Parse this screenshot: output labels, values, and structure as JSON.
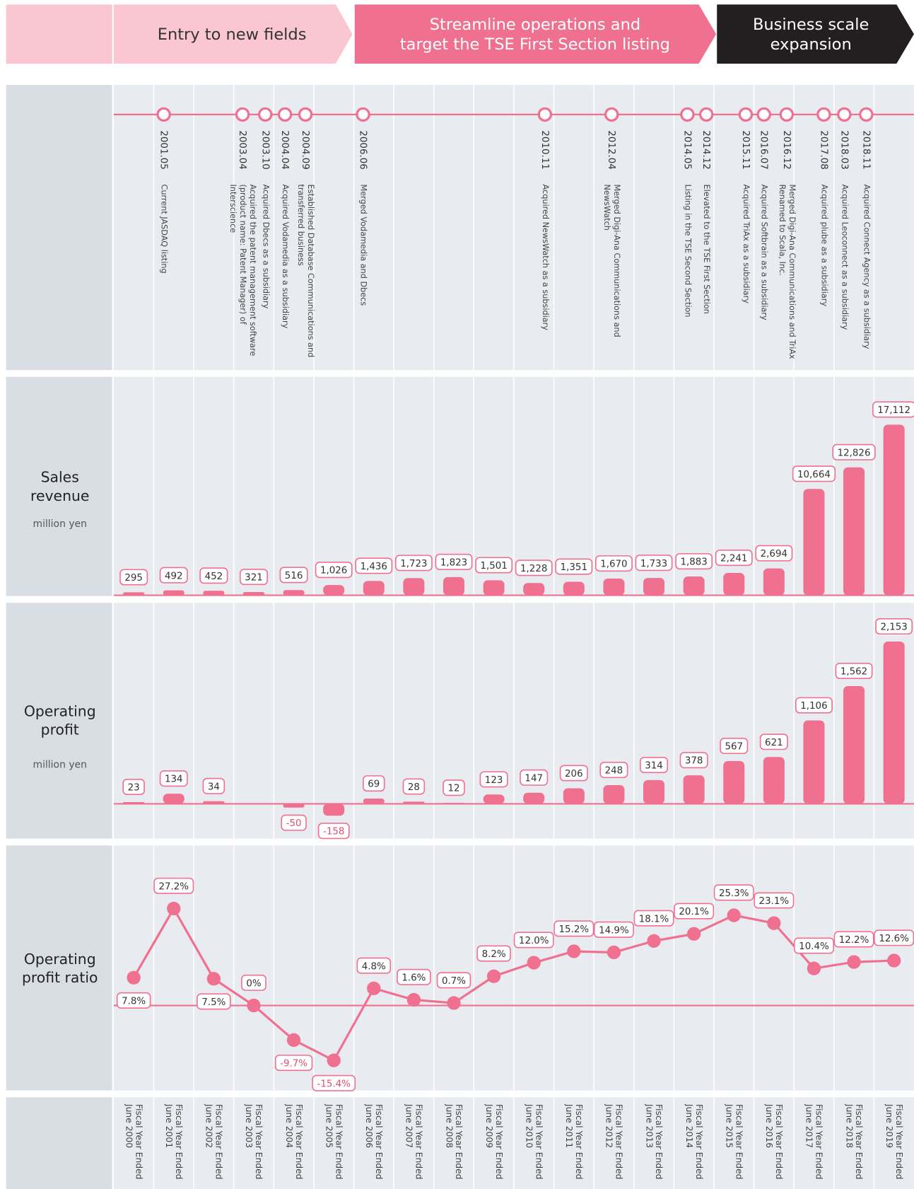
{
  "phases": [
    {
      "lines": [
        "Entry to new fields"
      ]
    },
    {
      "lines": [
        "Streamline operations and",
        "target the TSE First Section listing"
      ]
    },
    {
      "lines": [
        "Business scale",
        "expansion"
      ]
    }
  ],
  "milestones": [
    {
      "date": "2001.05",
      "description": [
        "Current JASDAQ listing"
      ]
    },
    {
      "date": "2003.04",
      "description": [
        "Acquired the patent management software",
        "(product name: Patent Manager) of",
        "Interscience"
      ]
    },
    {
      "date": "2003.10",
      "description": [
        "Acquired Dbecs as a subsidiary"
      ]
    },
    {
      "date": "2004.04",
      "description": [
        "Acquired Vodamedia as a subsidiary"
      ]
    },
    {
      "date": "2004.09",
      "description": [
        "Established Database Communications and",
        "transferred business"
      ]
    },
    {
      "date": "2006.06",
      "description": [
        "Merged Vodamedia and Dbecs"
      ]
    },
    {
      "date": "2010.11",
      "description": [
        "Acquired NewsWatch as a subsidiary"
      ]
    },
    {
      "date": "2012.04",
      "description": [
        "Merged Digi-Ana Communications and",
        "NewsWatch"
      ]
    },
    {
      "date": "2014.05",
      "description": [
        "Listing in the TSE Second Section"
      ]
    },
    {
      "date": "2014.12",
      "description": [
        "Elevated to the TSE First Section"
      ]
    },
    {
      "date": "2015.11",
      "description": [
        "Acquired TriAx as a subsidiary"
      ]
    },
    {
      "date": "2016.07",
      "description": [
        "Acquired Softbrain as a subsidiary"
      ]
    },
    {
      "date": "2016.12",
      "description": [
        "Merged Digi-Ana Communications and TriAx",
        "Renamed to Scala, Inc."
      ]
    },
    {
      "date": "2017.08",
      "description": [
        "Acquired plube as a subsidiary"
      ]
    },
    {
      "date": "2018.03",
      "description": [
        "Acquired Leoconnect as a subsidiary"
      ]
    },
    {
      "date": "2018.11",
      "description": [
        "Acquired Connect Agency as a subsidiary"
      ]
    }
  ],
  "chart_data": [
    {
      "type": "bar",
      "title": [
        "Sales",
        "revenue"
      ],
      "unit": "million yen",
      "color": "#f07090",
      "values": [
        295,
        492,
        452,
        321,
        516,
        1026,
        1436,
        1723,
        1823,
        1501,
        1228,
        1351,
        1670,
        1733,
        1883,
        2241,
        2694,
        10664,
        12826,
        17112
      ],
      "value_labels": [
        "295",
        "492",
        "452",
        "321",
        "516",
        "1,026",
        "1,436",
        "1,723",
        "1,823",
        "1,501",
        "1,228",
        "1,351",
        "1,670",
        "1,733",
        "1,883",
        "2,241",
        "2,694",
        "10,664",
        "12,826",
        "17,112"
      ]
    },
    {
      "type": "bar",
      "title": [
        "Operating",
        "profit"
      ],
      "unit": "million yen",
      "color": "#f07090",
      "values": [
        23,
        134,
        34,
        null,
        -50,
        -158,
        69,
        28,
        12,
        123,
        147,
        206,
        248,
        314,
        378,
        567,
        621,
        1106,
        1562,
        2153
      ],
      "value_labels": [
        "23",
        "134",
        "34",
        null,
        "-50",
        "-158",
        "69",
        "28",
        "12",
        "123",
        "147",
        "206",
        "248",
        "314",
        "378",
        "567",
        "621",
        "1,106",
        "1,562",
        "2,153"
      ]
    },
    {
      "type": "line",
      "title": [
        "Operating",
        "profit ratio"
      ],
      "color": "#f07090",
      "categories": [
        "Fiscal Year Ended June 2000",
        "Fiscal Year Ended June 2001",
        "Fiscal Year Ended June 2002",
        "Fiscal Year Ended June 2003",
        "Fiscal Year Ended June 2004",
        "Fiscal Year Ended June 2005",
        "Fiscal Year Ended June 2006",
        "Fiscal Year Ended June 2007",
        "Fiscal Year Ended June 2008",
        "Fiscal Year Ended June 2009",
        "Fiscal Year Ended June 2010",
        "Fiscal Year Ended June 2011",
        "Fiscal Year Ended June 2012",
        "Fiscal Year Ended June 2013",
        "Fiscal Year Ended June 2014",
        "Fiscal Year Ended June 2015",
        "Fiscal Year Ended June 2016",
        "Fiscal Year Ended June 2017",
        "Fiscal Year Ended June 2018",
        "Fiscal Year Ended June 2019"
      ],
      "values": [
        7.8,
        27.2,
        7.5,
        0,
        -9.7,
        -15.4,
        4.8,
        1.6,
        0.7,
        8.2,
        12.0,
        15.2,
        14.9,
        18.1,
        20.1,
        25.3,
        23.1,
        10.4,
        12.2,
        12.6
      ],
      "value_labels": [
        "7.8%",
        "27.2%",
        "7.5%",
        "0%",
        "-9.7%",
        "-15.4%",
        "4.8%",
        "1.6%",
        "0.7%",
        "8.2%",
        "12.0%",
        "15.2%",
        "14.9%",
        "18.1%",
        "20.1%",
        "25.3%",
        "23.1%",
        "10.4%",
        "12.2%",
        "12.6%"
      ]
    }
  ]
}
